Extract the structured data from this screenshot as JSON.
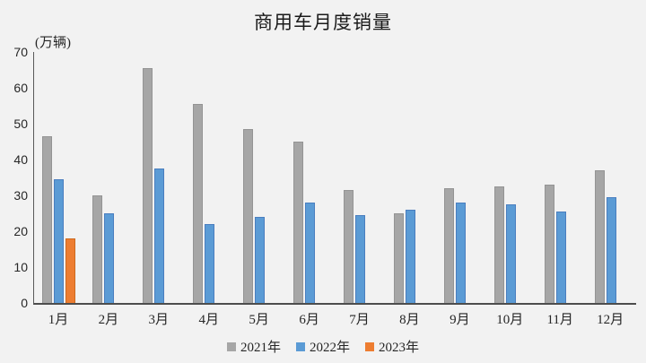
{
  "title": "商用车月度销量",
  "unit_label": "(万辆)",
  "colors": {
    "background": "#f2f2f2",
    "axis_line": "#595959",
    "baseline": "#4d4d4d",
    "text": "#262626",
    "series_2021": "#a6a6a6",
    "series_2022": "#5b9bd5",
    "series_2023": "#ed7d31"
  },
  "chart_data": {
    "type": "bar",
    "title": "商用车月度销量",
    "xlabel": "",
    "ylabel": "(万辆)",
    "ylim": [
      0,
      70
    ],
    "yticks": [
      0,
      10,
      20,
      30,
      40,
      50,
      60,
      70
    ],
    "grid": false,
    "legend_position": "bottom",
    "categories": [
      "1月",
      "2月",
      "3月",
      "4月",
      "5月",
      "6月",
      "7月",
      "8月",
      "9月",
      "10月",
      "11月",
      "12月"
    ],
    "series": [
      {
        "name": "2021年",
        "color": "#a6a6a6",
        "border": "#949494",
        "values": [
          46.5,
          30,
          65.5,
          55.5,
          48.5,
          45,
          31.5,
          25,
          32,
          32.5,
          33,
          37
        ]
      },
      {
        "name": "2022年",
        "color": "#5b9bd5",
        "border": "#4a7ebf",
        "values": [
          34.5,
          25,
          37.5,
          22,
          24,
          28,
          24.5,
          26,
          28,
          27.5,
          25.5,
          29.5
        ]
      },
      {
        "name": "2023年",
        "color": "#ed7d31",
        "border": "#cd6a20",
        "values": [
          18,
          null,
          null,
          null,
          null,
          null,
          null,
          null,
          null,
          null,
          null,
          null
        ]
      }
    ]
  }
}
